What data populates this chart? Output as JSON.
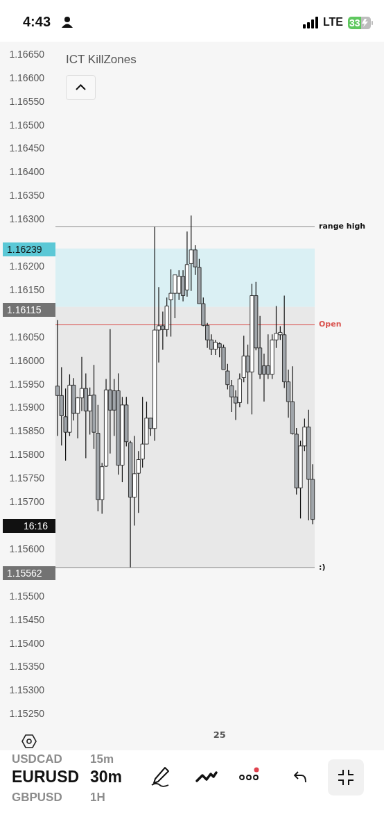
{
  "chart_data": {
    "type": "candlestick",
    "title": "ICT KillZones",
    "categories": [
      null,
      null,
      null,
      null,
      null,
      null,
      null,
      null,
      null,
      null,
      null,
      null,
      null,
      null,
      null,
      null,
      null,
      null,
      null,
      null,
      null,
      null,
      null,
      null,
      null,
      null,
      null,
      null,
      null,
      null,
      null,
      null,
      null,
      null,
      null,
      null,
      null,
      null,
      null,
      null,
      "25",
      null,
      null,
      null,
      null,
      null,
      null,
      null,
      null,
      null,
      null,
      null,
      null,
      null,
      null,
      null,
      null,
      null,
      null,
      null,
      null,
      null,
      null,
      null
    ],
    "ohlc": [
      [
        1.15947,
        1.16087,
        1.15841,
        1.15927
      ],
      [
        1.15927,
        1.15987,
        1.15821,
        1.15884
      ],
      [
        1.15882,
        1.15942,
        1.15789,
        1.15849
      ],
      [
        1.15849,
        1.15972,
        1.15841,
        1.15949
      ],
      [
        1.15949,
        1.15964,
        1.15874,
        1.15889
      ],
      [
        1.15889,
        1.15924,
        1.15836,
        1.15922
      ],
      [
        1.15922,
        1.16009,
        1.15894,
        1.15942
      ],
      [
        1.15942,
        1.15974,
        1.15794,
        1.15894
      ],
      [
        1.15894,
        1.15944,
        1.15844,
        1.15927
      ],
      [
        1.15928,
        1.15992,
        1.15814,
        1.15849
      ],
      [
        1.15847,
        1.15907,
        1.15681,
        1.15706
      ],
      [
        1.15706,
        1.15784,
        1.15676,
        1.15776
      ],
      [
        1.15777,
        1.15962,
        1.15776,
        1.15939
      ],
      [
        1.15939,
        1.16068,
        1.15804,
        1.15896
      ],
      [
        1.15937,
        1.15962,
        1.15841,
        1.15896
      ],
      [
        1.15937,
        1.15974,
        1.15759,
        1.15779
      ],
      [
        1.15779,
        1.15924,
        1.15743,
        1.15907
      ],
      [
        1.15907,
        1.15924,
        1.15819,
        1.15829
      ],
      [
        1.15827,
        1.15831,
        1.15562,
        1.15711
      ],
      [
        1.15711,
        1.15841,
        1.15651,
        1.15761
      ],
      [
        1.15762,
        1.15809,
        1.15678,
        1.15791
      ],
      [
        1.15792,
        1.15924,
        1.15774,
        1.15824
      ],
      [
        1.15824,
        1.15914,
        1.15824,
        1.15879
      ],
      [
        1.15879,
        1.15879,
        1.15841,
        1.15857
      ],
      [
        1.15857,
        1.16285,
        1.15831,
        1.16066
      ],
      [
        1.16066,
        1.16157,
        1.15997,
        1.16075
      ],
      [
        1.16075,
        1.16105,
        1.16024,
        1.16067
      ],
      [
        1.16067,
        1.16135,
        1.16052,
        1.16117
      ],
      [
        1.1613,
        1.16195,
        1.16052,
        1.16144
      ],
      [
        1.16144,
        1.16183,
        1.16091,
        1.16183
      ],
      [
        1.16144,
        1.16193,
        1.1613,
        1.1618
      ],
      [
        1.1618,
        1.16193,
        1.16127,
        1.16139
      ],
      [
        1.16151,
        1.16275,
        1.16137,
        1.16205
      ],
      [
        1.16207,
        1.16309,
        1.16149,
        1.16236
      ],
      [
        1.16236,
        1.16246,
        1.16183,
        1.162
      ],
      [
        1.16199,
        1.16217,
        1.16122,
        1.16122
      ],
      [
        1.16122,
        1.16135,
        1.16074,
        1.16076
      ],
      [
        1.16076,
        1.16081,
        1.16028,
        1.16045
      ],
      [
        1.16045,
        1.16057,
        1.16013,
        1.16025
      ],
      [
        1.16025,
        1.16045,
        1.16013,
        1.1604
      ],
      [
        1.16037,
        1.1604,
        1.16008,
        1.16029
      ],
      [
        1.16029,
        1.16035,
        1.15982,
        1.15982
      ],
      [
        1.15979,
        1.15994,
        1.1594,
        1.1595
      ],
      [
        1.15948,
        1.1596,
        1.15892,
        1.15924
      ],
      [
        1.15924,
        1.15938,
        1.15875,
        1.15911
      ],
      [
        1.15912,
        1.15974,
        1.15902,
        1.15962
      ],
      [
        1.15965,
        1.16054,
        1.15955,
        1.16011
      ],
      [
        1.16011,
        1.16035,
        1.15909,
        1.15977
      ],
      [
        1.15977,
        1.16164,
        1.15887,
        1.16139
      ],
      [
        1.16139,
        1.16168,
        1.16023,
        1.16028
      ],
      [
        1.16028,
        1.16096,
        1.15962,
        1.15972
      ],
      [
        1.1599,
        1.16016,
        1.15914,
        1.15972
      ],
      [
        1.1599,
        1.16057,
        1.15962,
        1.15972
      ],
      [
        1.15972,
        1.16057,
        1.15962,
        1.16045
      ],
      [
        1.16045,
        1.16117,
        1.16028,
        1.16059
      ],
      [
        1.16056,
        1.16074,
        1.16045,
        1.16061
      ],
      [
        1.16056,
        1.16139,
        1.15943,
        1.15956
      ],
      [
        1.15956,
        1.15982,
        1.1588,
        1.15914
      ],
      [
        1.15914,
        1.15989,
        1.15844,
        1.15846
      ],
      [
        1.15845,
        1.15858,
        1.15717,
        1.15731
      ],
      [
        1.15731,
        1.15831,
        1.15666,
        1.1582
      ],
      [
        1.1582,
        1.15878,
        1.15809,
        1.1586
      ],
      [
        1.1586,
        1.15897,
        1.15662,
        1.15749
      ],
      [
        1.15749,
        1.15781,
        1.15654,
        1.15664
      ]
    ],
    "colors": [
      "#a0a5aa",
      "#a0a5aa",
      "#a0a5aa",
      "#ffffff",
      "#a0a5aa",
      "#ffffff",
      "#ffffff",
      "#a0a5aa",
      "#ffffff",
      "#a0a5aa",
      "#a0a5aa",
      "#ffffff",
      "#ffffff",
      "#a0a5aa",
      "#a0a5aa",
      "#a0a5aa",
      "#ffffff",
      "#a0a5aa",
      "#a0a5aa",
      "#ffffff",
      "#ffffff",
      "#ffffff",
      "#ffffff",
      "#a0a5aa",
      "#ffffff",
      "#ffffff",
      "#a0a5aa",
      "#ffffff",
      "#ffffff",
      "#ffffff",
      "#ffffff",
      "#a0a5aa",
      "#ffffff",
      "#ffffff",
      "#a0a5aa",
      "#a0a5aa",
      "#a0a5aa",
      "#a0a5aa",
      "#a0a5aa",
      "#ffffff",
      "#a0a5aa",
      "#a0a5aa",
      "#a0a5aa",
      "#a0a5aa",
      "#a0a5aa",
      "#ffffff",
      "#ffffff",
      "#a0a5aa",
      "#ffffff",
      "#a0a5aa",
      "#a0a5aa",
      "#a0a5aa",
      "#a0a5aa",
      "#ffffff",
      "#ffffff",
      "#ffffff",
      "#a0a5aa",
      "#a0a5aa",
      "#a0a5aa",
      "#a0a5aa",
      "#ffffff",
      "#ffffff",
      "#a0a5aa",
      "#a0a5aa"
    ],
    "ylim": [
      1.1525,
      1.1665
    ],
    "yticks": [
      {
        "value": 1.1665,
        "label": "1.16650"
      },
      {
        "value": 1.166,
        "label": "1.16600"
      },
      {
        "value": 1.1655,
        "label": "1.16550"
      },
      {
        "value": 1.165,
        "label": "1.16500"
      },
      {
        "value": 1.1645,
        "label": "1.16450"
      },
      {
        "value": 1.164,
        "label": "1.16400"
      },
      {
        "value": 1.1635,
        "label": "1.16350"
      },
      {
        "value": 1.163,
        "label": "1.16300"
      },
      {
        "value": 1.162,
        "label": "1.16200"
      },
      {
        "value": 1.1615,
        "label": "1.16150"
      },
      {
        "value": 1.1605,
        "label": "1.16050"
      },
      {
        "value": 1.16,
        "label": "1.16000"
      },
      {
        "value": 1.1595,
        "label": "1.15950"
      },
      {
        "value": 1.159,
        "label": "1.15900"
      },
      {
        "value": 1.1585,
        "label": "1.15850"
      },
      {
        "value": 1.158,
        "label": "1.15800"
      },
      {
        "value": 1.1575,
        "label": "1.15750"
      },
      {
        "value": 1.157,
        "label": "1.15700"
      },
      {
        "value": 1.156,
        "label": "1.15600"
      },
      {
        "value": 1.155,
        "label": "1.15500"
      },
      {
        "value": 1.1545,
        "label": "1.15450"
      },
      {
        "value": 1.154,
        "label": "1.15400"
      },
      {
        "value": 1.1535,
        "label": "1.15350"
      },
      {
        "value": 1.153,
        "label": "1.15300"
      },
      {
        "value": 1.1525,
        "label": "1.15250"
      }
    ],
    "grid": false,
    "legend": false,
    "bands": [
      {
        "axis": "y",
        "from": 1.16115,
        "to": 1.16239,
        "color": "#cfeef3"
      },
      {
        "axis": "y",
        "from": 1.15562,
        "to": 1.16115,
        "color": "#e2e2e2"
      }
    ],
    "ref_lines": [
      {
        "axis": "y",
        "value": 1.16285,
        "label": "range high",
        "color": "#8a8a8a"
      },
      {
        "axis": "y",
        "value": 1.16077,
        "label": "Open",
        "color": "#d9534f"
      },
      {
        "axis": "y",
        "value": 1.15562,
        "label": ":)",
        "color": "#8a8a8a"
      }
    ],
    "annotations": [
      "1.16239",
      "1.16115",
      "16:16",
      "1.15562",
      "4:43",
      "LTE",
      "33",
      "USDCAD",
      "15m",
      "EURUSD",
      "30m",
      "GBPUSD",
      "1H"
    ]
  }
}
